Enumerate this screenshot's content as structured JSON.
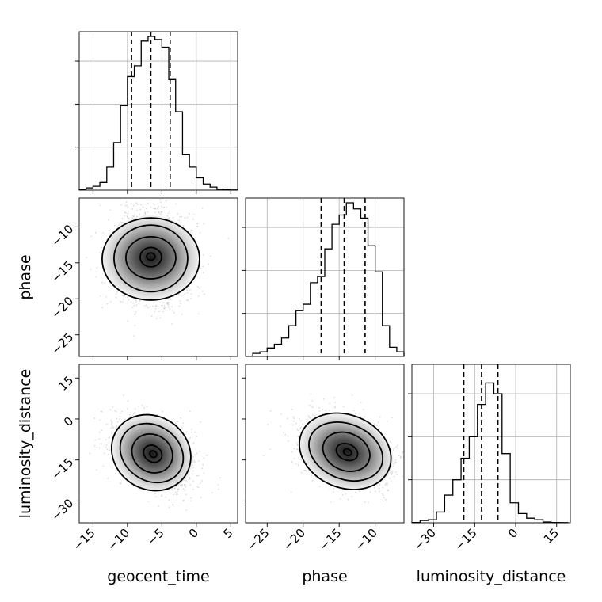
{
  "chart_data": {
    "type": "corner",
    "parameters": [
      {
        "name": "geocent_time",
        "label": "geocent_time",
        "range": [
          -17,
          6
        ],
        "ticks": [
          -15,
          -10,
          -5,
          0,
          5
        ],
        "tick_labels": [
          "−15",
          "−10",
          "−5",
          "0",
          "5"
        ],
        "quantiles": [
          -9.4,
          -6.6,
          -3.8
        ]
      },
      {
        "name": "phase",
        "label": "phase",
        "range": [
          -28,
          -6
        ],
        "ticks": [
          -25,
          -20,
          -15,
          -10
        ],
        "tick_labels": [
          "−25",
          "−20",
          "−15",
          "−10"
        ],
        "quantiles": [
          -17.5,
          -14.3,
          -11.4
        ]
      },
      {
        "name": "luminosity_distance",
        "label": "luminosity_distance",
        "range": [
          -38,
          20
        ],
        "ticks": [
          -30,
          -15,
          0,
          15
        ],
        "tick_labels": [
          "−30",
          "−15",
          "0",
          "15"
        ],
        "quantiles": [
          -19.0,
          -12.5,
          -6.5
        ]
      }
    ],
    "histograms": {
      "geocent_time": {
        "bin_edges": [
          -17,
          -16,
          -15,
          -14,
          -13,
          -12,
          -11,
          -10,
          -9,
          -8,
          -7,
          -6,
          -5,
          -4,
          -3,
          -2,
          -1,
          0,
          1,
          2,
          3,
          4,
          5,
          6
        ],
        "heights": [
          0.004,
          0.015,
          0.025,
          0.05,
          0.15,
          0.31,
          0.55,
          0.74,
          0.81,
          0.97,
          1.0,
          0.98,
          0.93,
          0.72,
          0.51,
          0.23,
          0.15,
          0.08,
          0.04,
          0.02,
          0.006,
          0.002,
          0.001
        ]
      },
      "phase": {
        "bin_edges": [
          -28,
          -27,
          -26,
          -25,
          -24,
          -23,
          -22,
          -21,
          -20,
          -19,
          -18,
          -17,
          -16,
          -15,
          -14,
          -13,
          -12,
          -11,
          -10,
          -9,
          -8,
          -7,
          -6
        ],
        "heights": [
          0.002,
          0.02,
          0.03,
          0.055,
          0.08,
          0.12,
          0.2,
          0.3,
          0.34,
          0.48,
          0.52,
          0.7,
          0.86,
          0.92,
          1.0,
          0.96,
          0.9,
          0.72,
          0.55,
          0.2,
          0.06,
          0.03
        ]
      },
      "luminosity_distance": {
        "bin_edges": [
          -38,
          -35,
          -32,
          -29,
          -26,
          -23,
          -20,
          -17,
          -14,
          -11,
          -8,
          -5,
          -2,
          1,
          4,
          7,
          10,
          13,
          16,
          19
        ],
        "heights": [
          0.002,
          0.015,
          0.02,
          0.07,
          0.18,
          0.28,
          0.42,
          0.56,
          0.77,
          0.91,
          0.84,
          0.45,
          0.13,
          0.06,
          0.03,
          0.02,
          0.005,
          0.002,
          0.001
        ]
      }
    },
    "joint": [
      {
        "x": "geocent_time",
        "y": "phase",
        "center": [
          -6.6,
          -14.3
        ],
        "sigma": [
          3.0,
          3.3
        ],
        "rho": 0.0
      },
      {
        "x": "geocent_time",
        "y": "luminosity_distance",
        "center": [
          -6.4,
          -12.6
        ],
        "sigma": [
          3.0,
          6.5
        ],
        "rho": -0.4
      },
      {
        "x": "phase",
        "y": "luminosity_distance",
        "center": [
          -14.0,
          -12.0
        ],
        "sigma": [
          3.3,
          6.5
        ],
        "rho": -0.3
      }
    ],
    "grid": true
  }
}
